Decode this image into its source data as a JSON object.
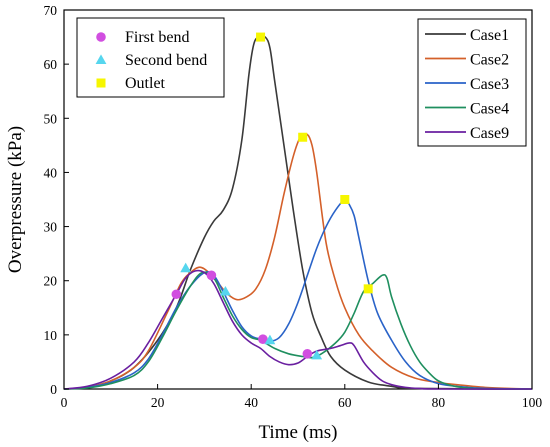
{
  "chart_data": {
    "type": "line",
    "xlabel": "Time (ms)",
    "ylabel": "Overpressure (kPa)",
    "xlim": [
      0,
      100
    ],
    "ylim": [
      0,
      70
    ],
    "x_ticks": [
      0,
      20,
      40,
      60,
      80,
      100
    ],
    "y_ticks": [
      0,
      10,
      20,
      30,
      40,
      50,
      60,
      70
    ],
    "x_tick_labels": [
      "0",
      "20",
      "40",
      "60",
      "80",
      "100"
    ],
    "y_tick_labels": [
      "0",
      "10",
      "20",
      "30",
      "40",
      "50",
      "60",
      "70"
    ],
    "grid": false,
    "series": [
      {
        "name": "Case1",
        "color": "#3a3a3a",
        "points": [
          [
            0,
            0
          ],
          [
            5,
            0.3
          ],
          [
            10,
            1.5
          ],
          [
            15,
            4
          ],
          [
            20,
            9
          ],
          [
            24,
            15
          ],
          [
            27,
            22
          ],
          [
            30,
            28
          ],
          [
            32,
            31
          ],
          [
            34,
            33
          ],
          [
            36,
            37
          ],
          [
            38,
            46
          ],
          [
            39.5,
            58
          ],
          [
            40.5,
            63.5
          ],
          [
            41.5,
            65
          ],
          [
            43,
            65
          ],
          [
            44,
            63
          ],
          [
            45,
            57
          ],
          [
            47,
            45
          ],
          [
            49,
            33
          ],
          [
            51,
            22
          ],
          [
            53,
            14
          ],
          [
            55,
            9.5
          ],
          [
            57,
            6
          ],
          [
            60,
            3.5
          ],
          [
            65,
            1.3
          ],
          [
            70,
            0.5
          ],
          [
            75,
            0.1
          ],
          [
            100,
            0
          ]
        ]
      },
      {
        "name": "Case2",
        "color": "#d4602a",
        "points": [
          [
            0,
            0
          ],
          [
            5,
            0.3
          ],
          [
            10,
            1.5
          ],
          [
            15,
            4
          ],
          [
            18,
            7
          ],
          [
            22,
            14
          ],
          [
            25,
            19.5
          ],
          [
            27,
            21.5
          ],
          [
            29,
            22.5
          ],
          [
            31,
            21.5
          ],
          [
            33,
            19.5
          ],
          [
            35,
            17.5
          ],
          [
            37,
            16.5
          ],
          [
            39,
            17
          ],
          [
            41,
            18.5
          ],
          [
            43,
            22
          ],
          [
            45,
            28
          ],
          [
            47,
            36
          ],
          [
            49,
            43
          ],
          [
            50.5,
            46.5
          ],
          [
            52,
            47
          ],
          [
            53,
            45
          ],
          [
            54,
            40
          ],
          [
            56,
            27
          ],
          [
            58,
            20
          ],
          [
            60,
            15
          ],
          [
            63,
            10
          ],
          [
            66,
            7
          ],
          [
            70,
            4
          ],
          [
            75,
            2
          ],
          [
            80,
            1.2
          ],
          [
            85,
            0.7
          ],
          [
            90,
            0.3
          ],
          [
            95,
            0.1
          ],
          [
            100,
            0
          ]
        ]
      },
      {
        "name": "Case3",
        "color": "#2a63c8",
        "points": [
          [
            0,
            0
          ],
          [
            5,
            0.3
          ],
          [
            10,
            1.2
          ],
          [
            15,
            3
          ],
          [
            18,
            5.5
          ],
          [
            21,
            10
          ],
          [
            24,
            15
          ],
          [
            27,
            19
          ],
          [
            30,
            21.5
          ],
          [
            32,
            21
          ],
          [
            34,
            18
          ],
          [
            36,
            14.5
          ],
          [
            38,
            11.5
          ],
          [
            40,
            9.8
          ],
          [
            42,
            9.2
          ],
          [
            44,
            8.8
          ],
          [
            46,
            9.5
          ],
          [
            48,
            12
          ],
          [
            50,
            16
          ],
          [
            52,
            21
          ],
          [
            54,
            26
          ],
          [
            56,
            30
          ],
          [
            58,
            33
          ],
          [
            60,
            35
          ],
          [
            61,
            34
          ],
          [
            62,
            32
          ],
          [
            63,
            28
          ],
          [
            65,
            20
          ],
          [
            67,
            14
          ],
          [
            70,
            9
          ],
          [
            73,
            5
          ],
          [
            76,
            2.5
          ],
          [
            80,
            1
          ],
          [
            85,
            0.4
          ],
          [
            90,
            0.1
          ],
          [
            100,
            0
          ]
        ]
      },
      {
        "name": "Case4",
        "color": "#1f8f5f",
        "points": [
          [
            0,
            0
          ],
          [
            5,
            0.2
          ],
          [
            10,
            1
          ],
          [
            15,
            2.5
          ],
          [
            18,
            5
          ],
          [
            21,
            9.5
          ],
          [
            24,
            14.5
          ],
          [
            27,
            19
          ],
          [
            29.5,
            21.5
          ],
          [
            32,
            20.5
          ],
          [
            34,
            17
          ],
          [
            36,
            13.5
          ],
          [
            38,
            11
          ],
          [
            40,
            9.5
          ],
          [
            42,
            9
          ],
          [
            45,
            7.5
          ],
          [
            48,
            6.5
          ],
          [
            51,
            6
          ],
          [
            53,
            5.8
          ],
          [
            55,
            6.5
          ],
          [
            58,
            8.5
          ],
          [
            60,
            10.5
          ],
          [
            62,
            14
          ],
          [
            64,
            18
          ],
          [
            66,
            19.5
          ],
          [
            68,
            21
          ],
          [
            69,
            20.5
          ],
          [
            70,
            17
          ],
          [
            72,
            12
          ],
          [
            74,
            8
          ],
          [
            76,
            5
          ],
          [
            78,
            3
          ],
          [
            80,
            1.5
          ],
          [
            83,
            0.6
          ],
          [
            86,
            0.2
          ],
          [
            90,
            0
          ],
          [
            100,
            0
          ]
        ]
      },
      {
        "name": "Case9",
        "color": "#6a1fa0",
        "points": [
          [
            0,
            0
          ],
          [
            5,
            0.5
          ],
          [
            10,
            2
          ],
          [
            15,
            5
          ],
          [
            18,
            8.5
          ],
          [
            21,
            13
          ],
          [
            24,
            17.5
          ],
          [
            26,
            20.5
          ],
          [
            28,
            21.8
          ],
          [
            30,
            21.5
          ],
          [
            32,
            19.5
          ],
          [
            34,
            16
          ],
          [
            36,
            12.5
          ],
          [
            38,
            10
          ],
          [
            40,
            8.5
          ],
          [
            42,
            7.5
          ],
          [
            44,
            6
          ],
          [
            46,
            5
          ],
          [
            48,
            4.5
          ],
          [
            50,
            4.8
          ],
          [
            52,
            6
          ],
          [
            54,
            7
          ],
          [
            57,
            7.5
          ],
          [
            59,
            8
          ],
          [
            61,
            8.5
          ],
          [
            62,
            8
          ],
          [
            64,
            5
          ],
          [
            66,
            3
          ],
          [
            68,
            1.5
          ],
          [
            70,
            0.8
          ],
          [
            73,
            0.3
          ],
          [
            76,
            0.1
          ],
          [
            80,
            0
          ],
          [
            100,
            0
          ]
        ]
      }
    ],
    "markers": [
      {
        "name": "First bend",
        "shape": "circle",
        "color": "#d14ee0",
        "points": [
          [
            24,
            17.5
          ],
          [
            31.5,
            21
          ],
          [
            42.5,
            9.2
          ],
          [
            52,
            6.5
          ]
        ]
      },
      {
        "name": "Second bend",
        "shape": "triangle",
        "color": "#56d6ee",
        "points": [
          [
            26,
            22.3
          ],
          [
            34.5,
            18
          ],
          [
            44,
            9
          ],
          [
            54,
            6.2
          ]
        ]
      },
      {
        "name": "Outlet",
        "shape": "square",
        "color": "#f6f600",
        "points": [
          [
            42,
            65
          ],
          [
            51,
            46.5
          ],
          [
            60,
            35
          ],
          [
            65,
            18.5
          ]
        ]
      }
    ],
    "legend_lines_position": "top-right",
    "legend_markers_position": "top-left"
  }
}
